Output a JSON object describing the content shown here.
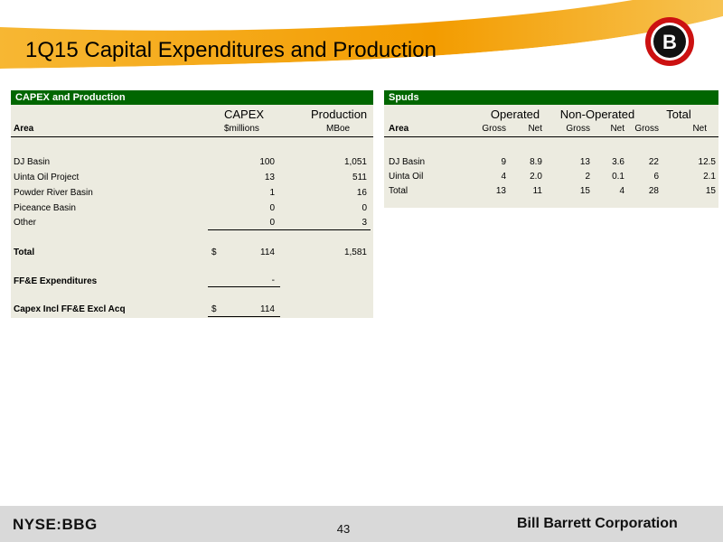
{
  "header": {
    "title": "1Q15 Capital Expenditures and Production",
    "accent": "#f3a400"
  },
  "logo": {
    "letter": "B",
    "ring_color": "#cc1111"
  },
  "capex": {
    "panel_title": "CAPEX and Production",
    "col_capex": "CAPEX",
    "col_production": "Production",
    "col_area": "Area",
    "unit_capex": "$millions",
    "unit_production": "MBoe",
    "rows": [
      {
        "area": "DJ Basin",
        "capex": "100",
        "production": "1,051"
      },
      {
        "area": "Uinta Oil Project",
        "capex": "13",
        "production": "511"
      },
      {
        "area": "Powder River Basin",
        "capex": "1",
        "production": "16"
      },
      {
        "area": "Piceance Basin",
        "capex": "0",
        "production": "0"
      },
      {
        "area": "Other",
        "capex": "0",
        "production": "3"
      }
    ],
    "total": {
      "label": "Total",
      "currency": "$",
      "capex": "114",
      "production": "1,581"
    },
    "ffe": {
      "label": "FF&E Expenditures",
      "capex": "-"
    },
    "capex_incl": {
      "label": "Capex Incl FF&E Excl Acq",
      "currency": "$",
      "capex": "114"
    }
  },
  "spuds": {
    "panel_title": "Spuds",
    "groups": [
      "Operated",
      "Non-Operated",
      "Total"
    ],
    "col_area": "Area",
    "sub_headers": [
      "Gross",
      "Net",
      "Gross",
      "Net",
      "Gross",
      "Net"
    ],
    "rows": [
      {
        "area": "DJ Basin",
        "values": [
          "9",
          "8.9",
          "13",
          "3.6",
          "22",
          "12.5"
        ]
      },
      {
        "area": "Uinta Oil",
        "values": [
          "4",
          "2.0",
          "2",
          "0.1",
          "6",
          "2.1"
        ]
      },
      {
        "area": "Total",
        "values": [
          "13",
          "11",
          "15",
          "4",
          "28",
          "15"
        ]
      }
    ]
  },
  "footer": {
    "ticker": "NYSE:BBG",
    "page_number": "43",
    "company": "Bill Barrett Corporation"
  }
}
